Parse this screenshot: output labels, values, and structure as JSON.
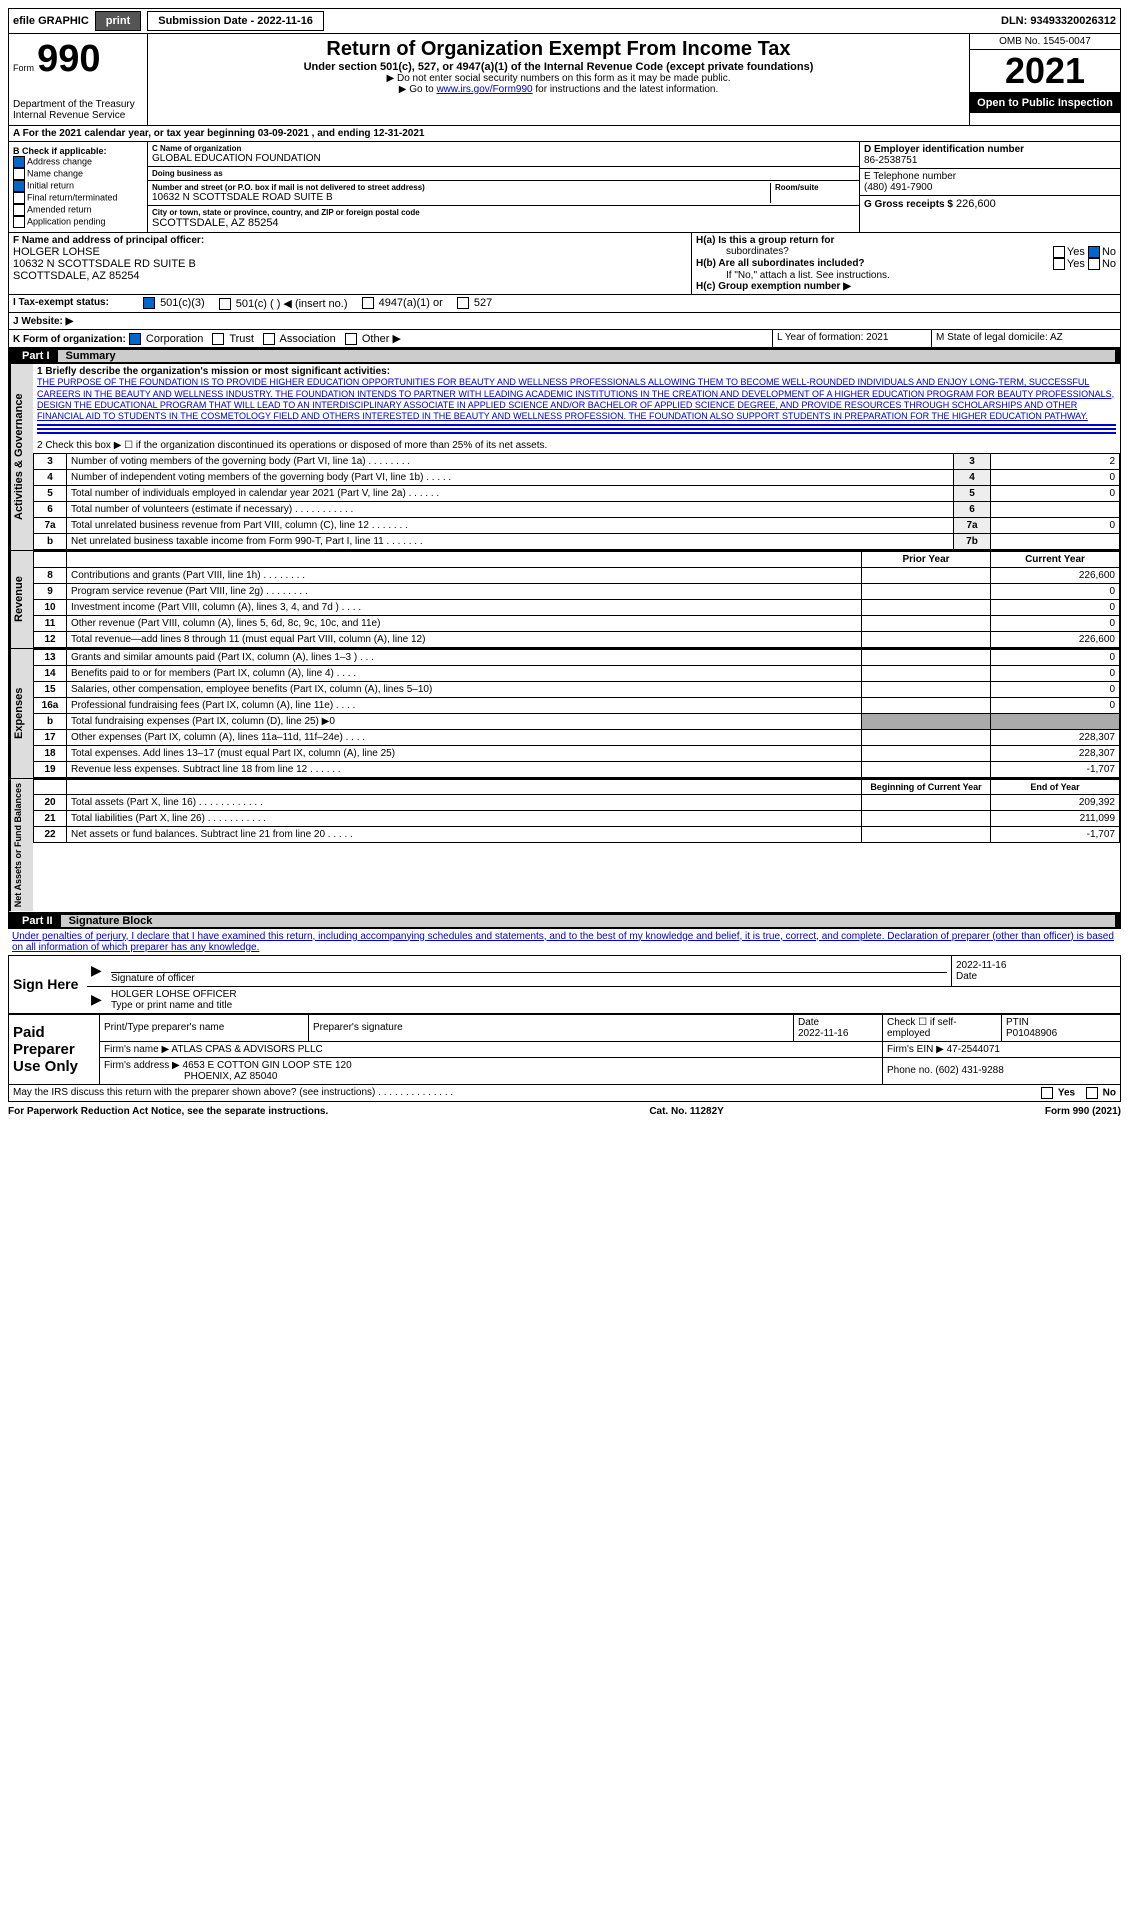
{
  "topbar": {
    "efile": "efile GRAPHIC",
    "print": "print",
    "subdate_label": "Submission Date - 2022-11-16",
    "dln": "DLN: 93493320026312"
  },
  "header": {
    "form_prefix": "Form",
    "form_num": "990",
    "dept": "Department of the Treasury",
    "irs": "Internal Revenue Service",
    "title": "Return of Organization Exempt From Income Tax",
    "subtitle": "Under section 501(c), 527, or 4947(a)(1) of the Internal Revenue Code (except private foundations)",
    "note1": "▶ Do not enter social security numbers on this form as it may be made public.",
    "note2_pre": "▶ Go to ",
    "note2_link": "www.irs.gov/Form990",
    "note2_post": " for instructions and the latest information.",
    "omb": "OMB No. 1545-0047",
    "year": "2021",
    "open": "Open to Public Inspection"
  },
  "sectionA": {
    "text": "A For the 2021 calendar year, or tax year beginning 03-09-2021    , and ending 12-31-2021"
  },
  "sectionB": {
    "title": "B Check if applicable:",
    "items": [
      "Address change",
      "Name change",
      "Initial return",
      "Final return/terminated",
      "Amended return",
      "Application pending"
    ],
    "checked": [
      true,
      false,
      true,
      false,
      false,
      false
    ]
  },
  "sectionC": {
    "label_name": "C Name of organization",
    "name": "GLOBAL EDUCATION FOUNDATION",
    "dba_label": "Doing business as",
    "dba": "",
    "street_label": "Number and street (or P.O. box if mail is not delivered to street address)",
    "room_label": "Room/suite",
    "street": "10632 N SCOTTSDALE ROAD SUITE B",
    "city_label": "City or town, state or province, country, and ZIP or foreign postal code",
    "city": "SCOTTSDALE, AZ  85254"
  },
  "sectionD": {
    "label": "D Employer identification number",
    "value": "86-2538751"
  },
  "sectionE": {
    "label": "E Telephone number",
    "value": "(480) 491-7900"
  },
  "sectionG": {
    "label": "G Gross receipts $",
    "value": "226,600"
  },
  "sectionF": {
    "label": "F  Name and address of principal officer:",
    "name": "HOLGER LOHSE",
    "addr1": "10632 N SCOTTSDALE RD SUITE B",
    "addr2": "SCOTTSDALE, AZ  85254"
  },
  "sectionH": {
    "a_label": "H(a)  Is this a group return for",
    "a_sub": "subordinates?",
    "b_label": "H(b)  Are all subordinates included?",
    "b_note": "If \"No,\" attach a list. See instructions.",
    "c_label": "H(c)  Group exemption number ▶"
  },
  "sectionI": {
    "label": "I    Tax-exempt status:",
    "opts": [
      "501(c)(3)",
      "501(c) (   ) ◀ (insert no.)",
      "4947(a)(1) or",
      "527"
    ]
  },
  "sectionJ": {
    "label": "J   Website: ▶"
  },
  "sectionK": {
    "label": "K Form of organization:",
    "opts": [
      "Corporation",
      "Trust",
      "Association",
      "Other ▶"
    ]
  },
  "sectionL": {
    "label": "L Year of formation: 2021"
  },
  "sectionM": {
    "label": "M State of legal domicile: AZ"
  },
  "part1": {
    "label": "Part I",
    "title": "Summary",
    "line1_label": "1   Briefly describe the organization's mission or most significant activities:",
    "mission": "THE PURPOSE OF THE FOUNDATION IS TO PROVIDE HIGHER EDUCATION OPPORTUNITIES FOR BEAUTY AND WELLNESS PROFESSIONALS ALLOWING THEM TO BECOME WELL-ROUNDED INDIVIDUALS AND ENJOY LONG-TERM, SUCCESSFUL CAREERS IN THE BEAUTY AND WELLNESS INDUSTRY. THE FOUNDATION INTENDS TO PARTNER WITH LEADING ACADEMIC INSTITUTIONS IN THE CREATION AND DEVELOPMENT OF A HIGHER EDUCATION PROGRAM FOR BEAUTY PROFESSIONALS, DESIGN THE EDUCATIONAL PROGRAM THAT WILL LEAD TO AN INTERDISCIPLINARY ASSOCIATE IN APPLIED SCIENCE AND/OR BACHELOR OF APPLIED SCIENCE DEGREE, AND PROVIDE RESOURCES THROUGH SCHOLARSHIPS AND OTHER FINANCIAL AID TO STUDENTS IN THE COSMETOLOGY FIELD AND OTHERS INTERESTED IN THE BEAUTY AND WELLNESS PROFESSION. THE FOUNDATION ALSO SUPPORT STUDENTS IN PREPARATION FOR THE HIGHER EDUCATION PATHWAY.",
    "line2": "2   Check this box ▶ ☐  if the organization discontinued its operations or disposed of more than 25% of its net assets.",
    "vert_ag": "Activities & Governance",
    "vert_rev": "Revenue",
    "vert_exp": "Expenses",
    "vert_net": "Net Assets or Fund Balances",
    "rows_ag": [
      {
        "n": "3",
        "t": "Number of voting members of the governing body (Part VI, line 1a)   .    .    .    .    .    .    .    .",
        "c": "3",
        "v": "2"
      },
      {
        "n": "4",
        "t": "Number of independent voting members of the governing body (Part VI, line 1b)   .    .    .    .    .",
        "c": "4",
        "v": "0"
      },
      {
        "n": "5",
        "t": "Total number of individuals employed in calendar year 2021 (Part V, line 2a)   .    .    .    .    .    .",
        "c": "5",
        "v": "0"
      },
      {
        "n": "6",
        "t": "Total number of volunteers (estimate if necessary)   .    .    .    .    .    .    .    .    .    .    .",
        "c": "6",
        "v": ""
      },
      {
        "n": "7a",
        "t": "Total unrelated business revenue from Part VIII, column (C), line 12   .    .    .    .    .    .    .",
        "c": "7a",
        "v": "0"
      },
      {
        "n": "b",
        "t": "Net unrelated business taxable income from Form 990-T, Part I, line 11   .    .    .    .    .    .    .",
        "c": "7b",
        "v": ""
      }
    ],
    "col_prior": "Prior Year",
    "col_current": "Current Year",
    "rows_rev": [
      {
        "n": "8",
        "t": "Contributions and grants (Part VIII, line 1h)   .    .    .    .    .    .    .    .",
        "p": "",
        "c": "226,600"
      },
      {
        "n": "9",
        "t": "Program service revenue (Part VIII, line 2g)   .    .    .    .    .    .    .    .",
        "p": "",
        "c": "0"
      },
      {
        "n": "10",
        "t": "Investment income (Part VIII, column (A), lines 3, 4, and 7d )   .    .    .    .",
        "p": "",
        "c": "0"
      },
      {
        "n": "11",
        "t": "Other revenue (Part VIII, column (A), lines 5, 6d, 8c, 9c, 10c, and 11e)",
        "p": "",
        "c": "0"
      },
      {
        "n": "12",
        "t": "Total revenue—add lines 8 through 11 (must equal Part VIII, column (A), line 12)",
        "p": "",
        "c": "226,600"
      }
    ],
    "rows_exp": [
      {
        "n": "13",
        "t": "Grants and similar amounts paid (Part IX, column (A), lines 1–3 )   .    .    .",
        "p": "",
        "c": "0"
      },
      {
        "n": "14",
        "t": "Benefits paid to or for members (Part IX, column (A), line 4)   .    .    .    .",
        "p": "",
        "c": "0"
      },
      {
        "n": "15",
        "t": "Salaries, other compensation, employee benefits (Part IX, column (A), lines 5–10)",
        "p": "",
        "c": "0"
      },
      {
        "n": "16a",
        "t": "Professional fundraising fees (Part IX, column (A), line 11e)   .    .    .    .",
        "p": "",
        "c": "0"
      },
      {
        "n": "b",
        "t": "Total fundraising expenses (Part IX, column (D), line 25) ▶0",
        "p": "SHADE",
        "c": "SHADE"
      },
      {
        "n": "17",
        "t": "Other expenses (Part IX, column (A), lines 11a–11d, 11f–24e)   .    .    .    .",
        "p": "",
        "c": "228,307"
      },
      {
        "n": "18",
        "t": "Total expenses. Add lines 13–17 (must equal Part IX, column (A), line 25)",
        "p": "",
        "c": "228,307"
      },
      {
        "n": "19",
        "t": "Revenue less expenses. Subtract line 18 from line 12   .    .    .    .    .    .",
        "p": "",
        "c": "-1,707"
      }
    ],
    "col_begin": "Beginning of Current Year",
    "col_end": "End of Year",
    "rows_net": [
      {
        "n": "20",
        "t": "Total assets (Part X, line 16)   .    .    .    .    .    .    .    .    .    .    .    .",
        "p": "",
        "c": "209,392"
      },
      {
        "n": "21",
        "t": "Total liabilities (Part X, line 26)   .    .    .    .    .    .    .    .    .    .    .",
        "p": "",
        "c": "211,099"
      },
      {
        "n": "22",
        "t": "Net assets or fund balances. Subtract line 21 from line 20   .    .    .    .    .",
        "p": "",
        "c": "-1,707"
      }
    ]
  },
  "part2": {
    "label": "Part II",
    "title": "Signature Block",
    "decl": "Under penalties of perjury, I declare that I have examined this return, including accompanying schedules and statements, and to the best of my knowledge and belief, it is true, correct, and complete. Declaration of preparer (other than officer) is based on all information of which preparer has any knowledge.",
    "sign_here": "Sign Here",
    "sig_officer": "Signature of officer",
    "sig_date": "2022-11-16",
    "date_label": "Date",
    "officer_name": "HOLGER LOHSE  OFFICER",
    "type_label": "Type or print name and title",
    "paid": "Paid Preparer Use Only",
    "prep_name_label": "Print/Type preparer's name",
    "prep_sig_label": "Preparer's signature",
    "prep_date": "2022-11-16",
    "check_self": "Check ☐ if self-employed",
    "ptin_label": "PTIN",
    "ptin": "P01048906",
    "firm_name_label": "Firm's name    ▶",
    "firm_name": "ATLAS CPAS & ADVISORS PLLC",
    "firm_ein_label": "Firm's EIN ▶",
    "firm_ein": "47-2544071",
    "firm_addr_label": "Firm's address ▶",
    "firm_addr1": "4653 E COTTON GIN LOOP STE 120",
    "firm_addr2": "PHOENIX, AZ  85040",
    "phone_label": "Phone no.",
    "phone": "(602) 431-9288",
    "may_irs": "May the IRS discuss this return with the preparer shown above? (see instructions)   .    .    .    .    .    .    .    .    .    .    .    .    .    .",
    "yes": "Yes",
    "no": "No"
  },
  "footer": {
    "left": "For Paperwork Reduction Act Notice, see the separate instructions.",
    "mid": "Cat. No. 11282Y",
    "right": "Form 990 (2021)"
  }
}
